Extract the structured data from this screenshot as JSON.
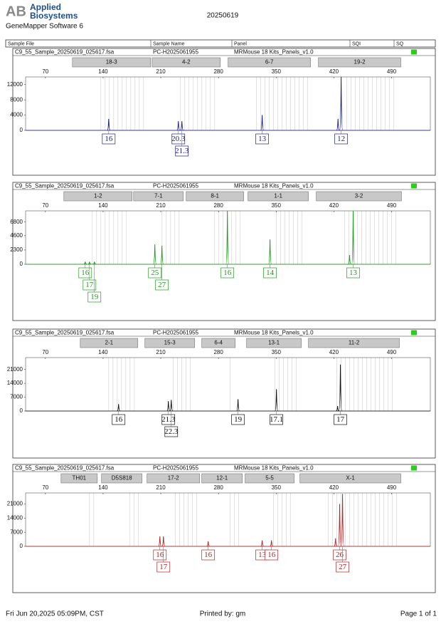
{
  "header": {
    "logo_mark": "AB",
    "brand_line1": "Applied",
    "brand_line2": "Biosystems",
    "software": "GeneMapper Software 6",
    "date": "20250619"
  },
  "table_header": {
    "sample_file": "Sample File",
    "sample_name": "Sample Name",
    "panel": "Panel",
    "sqi": "SQI",
    "sq": "SQ"
  },
  "footer": {
    "printed_at": "Fri Jun 20,2025 05:09PM, CST",
    "printed_by": "Printed by: gm",
    "page": "Page 1 of 1"
  },
  "chart_data": [
    {
      "type": "electropherogram",
      "sample_file": "C9_55_Sample_20250619_025617.fsa",
      "sample_name": "PC-H2025061955",
      "panel": "MRMouse 18 Kits_Panels_v1.0",
      "color": "#1c1c8e",
      "xlim": [
        46,
        537
      ],
      "xticks": [
        70,
        140,
        210,
        280,
        350,
        420,
        490
      ],
      "ylim": [
        0,
        14000
      ],
      "yticks": [
        0,
        4000,
        8000,
        12000
      ],
      "markers": {
        "names": [
          "18-3",
          "4-2",
          "6-7",
          "19-2"
        ],
        "ranges": [
          [
            102.8,
            197.6
          ],
          [
            199.4,
            282.2
          ],
          [
            291.6,
            391.7
          ],
          [
            401.2,
            501.2
          ]
        ]
      },
      "x": [
        146.8,
        231.3,
        235.6,
        333,
        425,
        428.8
      ],
      "values": [
        3000,
        2400,
        2400,
        4000,
        3000,
        14000
      ],
      "labels": [
        "16",
        "20.3",
        "21.3",
        "13",
        null,
        "12"
      ]
    },
    {
      "type": "electropherogram",
      "sample_file": "C9_55_Sample_20250619_025617.fsa",
      "sample_name": "PC-H2025061955",
      "panel": "MRMouse 18 Kits_Panels_v1.0",
      "color": "#1f9a1f",
      "xlim": [
        46,
        537
      ],
      "xticks": [
        70,
        140,
        210,
        280,
        350,
        420,
        490
      ],
      "ylim": [
        0,
        8600
      ],
      "yticks": [
        0,
        2300,
        4600,
        6800
      ],
      "markers": {
        "names": [
          "1-2",
          "7-1",
          "8-1",
          "1-1",
          "3-2"
        ],
        "ranges": [
          [
            92.4,
            175.2
          ],
          [
            177,
            237.3
          ],
          [
            240.8,
            310.6
          ],
          [
            315.8,
            389.1
          ],
          [
            398.6,
            502
          ]
        ]
      },
      "x": [
        118.3,
        123.5,
        129.5,
        202.8,
        211.4,
        290.8,
        342.5,
        439,
        443.4
      ],
      "values": [
        400,
        400,
        400,
        3200,
        3000,
        8600,
        4000,
        1500,
        8600
      ],
      "labels": [
        "16",
        "17",
        "19",
        "25",
        "27",
        "16",
        "14",
        null,
        "13"
      ]
    },
    {
      "type": "electropherogram",
      "sample_file": "C9_55_Sample_20250619_025617.fsa",
      "sample_name": "PC-H2025061955",
      "panel": "MRMouse 18 Kits_Panels_v1.0",
      "color": "#111111",
      "xlim": [
        46,
        537
      ],
      "xticks": [
        70,
        140,
        210,
        280,
        350,
        420,
        490
      ],
      "ylim": [
        0,
        27000
      ],
      "yticks": [
        0,
        7000,
        14000,
        21000
      ],
      "markers": {
        "names": [
          "2-1",
          "15-3",
          "6-4",
          "13-1",
          "11-2"
        ],
        "ranges": [
          [
            112.3,
            182.1
          ],
          [
            190.7,
            251.1
          ],
          [
            259.7,
            300.3
          ],
          [
            314,
            380.5
          ],
          [
            389.1,
            499.5
          ]
        ]
      },
      "x": [
        158.8,
        219.2,
        222.7,
        303.7,
        350.3,
        424.5,
        427.9
      ],
      "values": [
        3500,
        5000,
        5600,
        6000,
        11000,
        2500,
        23500
      ],
      "labels": [
        "16",
        "21.3",
        "22.3",
        "19",
        "17.1",
        null,
        "17"
      ]
    },
    {
      "type": "electropherogram",
      "sample_file": "C9_55_Sample_20250619_025617.fsa",
      "sample_name": "PC-H2025061955",
      "panel": "MRMouse 18 Kits_Panels_v1.0",
      "color": "#b22222",
      "xlim": [
        46,
        537
      ],
      "xticks": [
        70,
        140,
        210,
        280,
        350,
        420,
        490
      ],
      "ylim": [
        0,
        26500
      ],
      "yticks": [
        0,
        7000,
        14000,
        21000
      ],
      "markers": {
        "names": [
          "TH01",
          "D5S818",
          "17-2",
          "12-1",
          "5-5",
          "X-1"
        ],
        "ranges": [
          [
            89,
            133
          ],
          [
            138.1,
            187.3
          ],
          [
            193.3,
            257.2
          ],
          [
            259.7,
            308.9
          ],
          [
            312.3,
            371.8
          ],
          [
            378.8,
            501.2
          ]
        ]
      },
      "x": [
        208.9,
        213.2,
        267.5,
        333,
        344.3,
        422,
        427,
        430.5
      ],
      "values": [
        5000,
        5000,
        2500,
        3000,
        3000,
        4000,
        21000,
        26000
      ],
      "labels": [
        "16",
        "17",
        "16",
        "13",
        "16",
        null,
        "26",
        "27"
      ]
    }
  ]
}
